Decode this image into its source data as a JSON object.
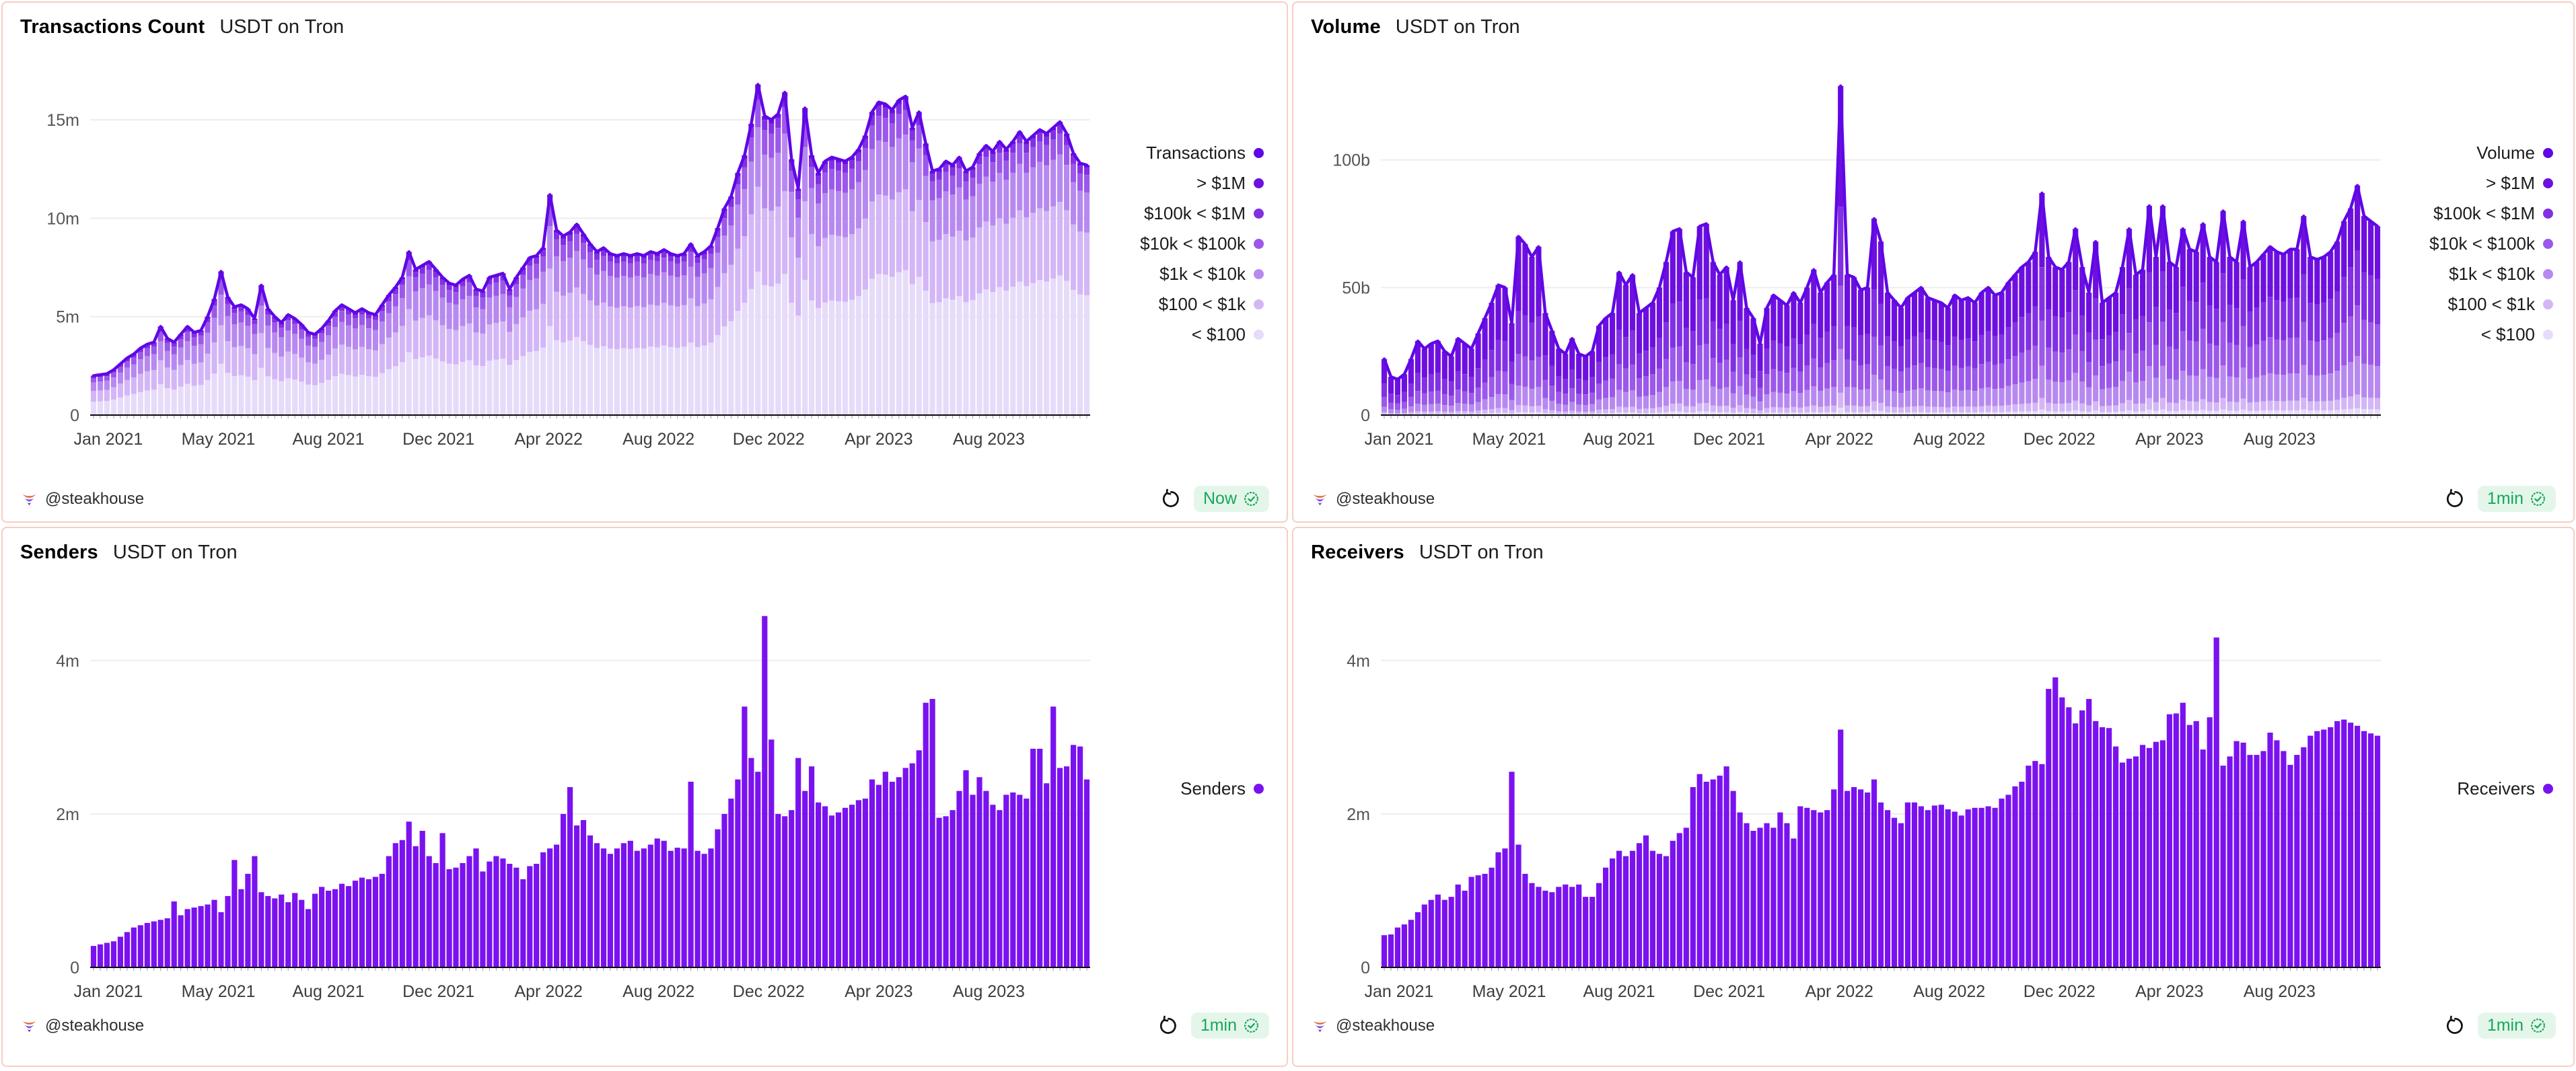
{
  "footer_common": {
    "author": "@steakhouse"
  },
  "colors": {
    "panel_border": "#f8cdc4",
    "badge_bg": "#e4f6ea",
    "badge_text": "#17a75c",
    "accent_line": "#6007e6",
    "solid_bar": "#7a12f0",
    "logo_orange": "#e4683e",
    "logo_purple": "#7e57e0",
    "logo_dark_purple": "#5b2ecc"
  },
  "panels": [
    {
      "title": "Transactions Count",
      "subtitle": "USDT on Tron",
      "freshness": "Now",
      "position": "top"
    },
    {
      "title": "Volume",
      "subtitle": "USDT on Tron",
      "freshness": "1min",
      "position": "top"
    },
    {
      "title": "Senders",
      "subtitle": "USDT on Tron",
      "freshness": "1min",
      "position": "bottom"
    },
    {
      "title": "Receivers",
      "subtitle": "USDT on Tron",
      "freshness": "1min",
      "position": "bottom"
    }
  ],
  "chart_data": [
    {
      "type": "bar",
      "variant": "stacked-bars-with-total-line",
      "title": "Transactions Count",
      "x_axis": {
        "labels": [
          "Jan 2021",
          "May 2021",
          "Aug 2021",
          "Dec 2021",
          "Apr 2022",
          "Aug 2022",
          "Dec 2022",
          "Apr 2023",
          "Aug 2023"
        ],
        "positions": [
          2.2,
          18.6,
          35.0,
          51.4,
          67.8,
          84.2,
          100.6,
          117.0,
          133.4
        ],
        "resolution": "weekly"
      },
      "y_axis": {
        "unit": "m",
        "ticks": [
          {
            "label": "0",
            "value": 0
          },
          {
            "label": "5m",
            "value": 5
          },
          {
            "label": "10m",
            "value": 10
          },
          {
            "label": "15m",
            "value": 15
          }
        ],
        "scale_max": 17.5
      },
      "legend": [
        {
          "label": "Transactions",
          "color": "#6007e6"
        },
        {
          "label": "> $1M",
          "color": "#6d10df"
        },
        {
          "label": "$100k < $1M",
          "color": "#8130e4"
        },
        {
          "label": "$10k < $100k",
          "color": "#9b58ea"
        },
        {
          "label": "$1k < $10k",
          "color": "#b789f0"
        },
        {
          "label": "$100 < $1k",
          "color": "#d3b6f6"
        },
        {
          "label": "< $100",
          "color": "#e7dbfa"
        }
      ],
      "line_color": "#6007e6",
      "stack": {
        "order_bottom_to_top": [
          "< $100",
          "$100 < $1k",
          "$1k < $10k",
          "$10k < $100k",
          "$100k < $1M",
          "> $1M"
        ],
        "colors_bottom_to_top": [
          "#e7dbfa",
          "#d3b6f6",
          "#b789f0",
          "#9b58ea",
          "#8130e4",
          "#6d10df"
        ],
        "fractions_start": [
          0.34,
          0.27,
          0.22,
          0.11,
          0.04,
          0.02
        ],
        "fractions_end": [
          0.48,
          0.25,
          0.16,
          0.07,
          0.03,
          0.01
        ]
      },
      "totals": [
        2.0,
        2.05,
        2.1,
        2.3,
        2.6,
        2.9,
        3.1,
        3.4,
        3.6,
        3.7,
        4.5,
        3.9,
        3.7,
        4.1,
        4.5,
        4.2,
        4.3,
        5.0,
        5.9,
        7.3,
        6.0,
        5.5,
        5.6,
        5.4,
        4.9,
        6.6,
        5.4,
        5.0,
        4.7,
        5.1,
        4.9,
        4.6,
        4.2,
        4.1,
        4.4,
        4.8,
        5.3,
        5.6,
        5.4,
        5.2,
        5.4,
        5.2,
        5.1,
        5.6,
        6.1,
        6.5,
        7.0,
        8.3,
        7.4,
        7.6,
        7.8,
        7.4,
        7.0,
        6.7,
        6.6,
        6.9,
        7.1,
        6.4,
        6.3,
        7.0,
        7.1,
        7.2,
        6.4,
        7.0,
        7.5,
        8.0,
        8.1,
        8.5,
        11.2,
        9.4,
        9.1,
        9.3,
        9.7,
        9.2,
        8.7,
        8.3,
        8.5,
        8.2,
        8.1,
        8.2,
        8.1,
        8.2,
        8.1,
        8.3,
        8.2,
        8.4,
        8.2,
        8.1,
        8.2,
        8.7,
        8.1,
        8.3,
        8.6,
        9.5,
        10.5,
        11.1,
        12.3,
        13.2,
        14.8,
        16.8,
        15.2,
        15.0,
        15.3,
        16.4,
        13.0,
        11.5,
        15.6,
        13.2,
        12.3,
        12.9,
        13.1,
        13.0,
        12.9,
        13.1,
        13.5,
        14.2,
        15.4,
        15.9,
        15.8,
        15.5,
        16.0,
        16.2,
        14.6,
        15.4,
        13.8,
        12.4,
        12.5,
        12.9,
        12.7,
        13.1,
        12.4,
        12.6,
        13.3,
        13.7,
        13.4,
        13.9,
        13.5,
        13.9,
        14.4,
        13.9,
        14.2,
        14.5,
        14.3,
        14.6,
        14.9,
        14.3,
        13.3,
        12.8,
        12.7
      ]
    },
    {
      "type": "bar",
      "variant": "stacked-bars-with-total-line",
      "title": "Volume",
      "x_axis": {
        "labels": [
          "Jan 2021",
          "May 2021",
          "Aug 2021",
          "Dec 2021",
          "Apr 2022",
          "Aug 2022",
          "Dec 2022",
          "Apr 2023",
          "Aug 2023"
        ],
        "positions": [
          2.2,
          18.6,
          35.0,
          51.4,
          67.8,
          84.2,
          100.6,
          117.0,
          133.4
        ],
        "resolution": "weekly"
      },
      "y_axis": {
        "unit": "b",
        "ticks": [
          {
            "label": "0",
            "value": 0
          },
          {
            "label": "50b",
            "value": 50
          },
          {
            "label": "100b",
            "value": 100
          }
        ],
        "scale_max": 135
      },
      "legend": [
        {
          "label": "Volume",
          "color": "#6007e6"
        },
        {
          "label": "> $1M",
          "color": "#6d10df"
        },
        {
          "label": "$100k < $1M",
          "color": "#8130e4"
        },
        {
          "label": "$10k < $100k",
          "color": "#9b58ea"
        },
        {
          "label": "$1k < $10k",
          "color": "#b789f0"
        },
        {
          "label": "$100 < $1k",
          "color": "#d3b6f6"
        },
        {
          "label": "< $100",
          "color": "#e7dbfa"
        }
      ],
      "line_color": "#6007e6",
      "stack": {
        "order_bottom_to_top": [
          "< $100",
          "$100 < $1k",
          "$1k < $10k",
          "$10k < $100k",
          "$100k < $1M",
          "> $1M"
        ],
        "colors_bottom_to_top": [
          "#e7dbfa",
          "#d3b6f6",
          "#b789f0",
          "#9b58ea",
          "#8130e4",
          "#6d10df"
        ],
        "fractions_start": [
          0.015,
          0.035,
          0.1,
          0.17,
          0.24,
          0.44
        ],
        "fractions_end": [
          0.03,
          0.06,
          0.17,
          0.22,
          0.24,
          0.28
        ]
      },
      "totals": [
        22,
        15,
        14,
        16,
        22,
        29,
        26,
        28,
        29,
        25,
        23,
        30,
        28,
        26,
        32,
        38,
        44,
        51,
        50,
        36,
        70,
        67,
        62,
        66,
        40,
        33,
        26,
        24,
        30,
        24,
        23,
        25,
        35,
        38,
        40,
        56,
        51,
        55,
        40,
        42,
        44,
        50,
        60,
        72,
        73,
        56,
        54,
        74,
        75,
        60,
        55,
        58,
        45,
        60,
        42,
        38,
        28,
        42,
        47,
        45,
        43,
        48,
        44,
        50,
        57,
        48,
        52,
        55,
        129,
        55,
        54,
        49,
        50,
        77,
        68,
        48,
        45,
        42,
        46,
        48,
        50,
        46,
        45,
        44,
        42,
        47,
        45,
        46,
        44,
        48,
        50,
        47,
        48,
        52,
        55,
        58,
        60,
        64,
        87,
        62,
        58,
        57,
        60,
        73,
        58,
        48,
        68,
        44,
        46,
        48,
        58,
        73,
        55,
        57,
        82,
        62,
        82,
        60,
        58,
        73,
        65,
        64,
        75,
        62,
        60,
        80,
        62,
        60,
        76,
        58,
        60,
        63,
        66,
        64,
        63,
        65,
        65,
        78,
        62,
        61,
        62,
        64,
        68,
        76,
        81,
        90,
        78,
        76,
        74
      ]
    },
    {
      "type": "bar",
      "variant": "solid-bars",
      "title": "Senders",
      "x_axis": {
        "labels": [
          "Jan 2021",
          "May 2021",
          "Aug 2021",
          "Dec 2021",
          "Apr 2022",
          "Aug 2022",
          "Dec 2022",
          "Apr 2023",
          "Aug 2023"
        ],
        "positions": [
          2.2,
          18.6,
          35.0,
          51.4,
          67.8,
          84.2,
          100.6,
          117.0,
          133.4
        ],
        "resolution": "weekly"
      },
      "y_axis": {
        "unit": "m",
        "ticks": [
          {
            "label": "0",
            "value": 0
          },
          {
            "label": "2m",
            "value": 2
          },
          {
            "label": "4m",
            "value": 4
          }
        ],
        "scale_max": 4.7
      },
      "legend": [
        {
          "label": "Senders",
          "color": "#7a12f0"
        }
      ],
      "bar_color": "#7a12f0",
      "totals": [
        0.28,
        0.3,
        0.32,
        0.34,
        0.4,
        0.46,
        0.52,
        0.55,
        0.58,
        0.6,
        0.62,
        0.64,
        0.86,
        0.68,
        0.76,
        0.78,
        0.8,
        0.82,
        0.88,
        0.72,
        0.93,
        1.4,
        1.02,
        1.22,
        1.45,
        0.98,
        0.93,
        0.9,
        0.95,
        0.85,
        0.97,
        0.88,
        0.76,
        0.96,
        1.05,
        1.0,
        1.02,
        1.09,
        1.06,
        1.13,
        1.17,
        1.15,
        1.18,
        1.22,
        1.45,
        1.62,
        1.66,
        1.9,
        1.58,
        1.78,
        1.45,
        1.36,
        1.75,
        1.28,
        1.3,
        1.36,
        1.45,
        1.55,
        1.25,
        1.38,
        1.45,
        1.42,
        1.35,
        1.3,
        1.15,
        1.32,
        1.35,
        1.5,
        1.55,
        1.6,
        2.0,
        2.35,
        1.85,
        1.92,
        1.72,
        1.62,
        1.55,
        1.48,
        1.55,
        1.62,
        1.65,
        1.52,
        1.55,
        1.6,
        1.68,
        1.65,
        1.52,
        1.56,
        1.55,
        2.42,
        1.52,
        1.48,
        1.55,
        1.8,
        2.0,
        2.2,
        2.45,
        3.4,
        2.73,
        2.55,
        4.58,
        2.97,
        2.0,
        1.97,
        2.05,
        2.73,
        2.3,
        2.62,
        2.15,
        2.1,
        1.98,
        2.02,
        2.08,
        2.12,
        2.18,
        2.2,
        2.45,
        2.38,
        2.55,
        2.42,
        2.48,
        2.6,
        2.66,
        2.83,
        3.45,
        3.5,
        1.95,
        1.97,
        2.05,
        2.3,
        2.57,
        2.25,
        2.48,
        2.3,
        2.12,
        2.05,
        2.25,
        2.28,
        2.25,
        2.2,
        2.85,
        2.85,
        2.4,
        3.4,
        2.6,
        2.62,
        2.9,
        2.88,
        2.45
      ]
    },
    {
      "type": "bar",
      "variant": "solid-bars",
      "title": "Receivers",
      "x_axis": {
        "labels": [
          "Jan 2021",
          "May 2021",
          "Aug 2021",
          "Dec 2021",
          "Apr 2022",
          "Aug 2022",
          "Dec 2022",
          "Apr 2023",
          "Aug 2023"
        ],
        "positions": [
          2.2,
          18.6,
          35.0,
          51.4,
          67.8,
          84.2,
          100.6,
          117.0,
          133.4
        ],
        "resolution": "weekly"
      },
      "y_axis": {
        "unit": "m",
        "ticks": [
          {
            "label": "0",
            "value": 0
          },
          {
            "label": "2m",
            "value": 2
          },
          {
            "label": "4m",
            "value": 4
          }
        ],
        "scale_max": 4.7
      },
      "legend": [
        {
          "label": "Receivers",
          "color": "#7a12f0"
        }
      ],
      "bar_color": "#7a12f0",
      "totals": [
        0.42,
        0.43,
        0.52,
        0.56,
        0.62,
        0.72,
        0.82,
        0.88,
        0.95,
        0.88,
        0.92,
        1.08,
        1.0,
        1.18,
        1.2,
        1.22,
        1.3,
        1.5,
        1.55,
        2.55,
        1.6,
        1.22,
        1.1,
        1.05,
        1.0,
        0.98,
        1.05,
        1.08,
        1.05,
        1.08,
        0.92,
        0.92,
        1.1,
        1.3,
        1.42,
        1.52,
        1.45,
        1.52,
        1.62,
        1.72,
        1.52,
        1.48,
        1.45,
        1.65,
        1.75,
        1.82,
        2.35,
        2.52,
        2.42,
        2.45,
        2.5,
        2.62,
        2.3,
        2.02,
        1.88,
        1.78,
        1.82,
        1.88,
        1.82,
        2.02,
        1.88,
        1.68,
        2.1,
        2.08,
        2.05,
        2.02,
        2.05,
        2.32,
        3.1,
        2.3,
        2.35,
        2.32,
        2.28,
        2.45,
        2.15,
        2.05,
        1.95,
        1.88,
        2.15,
        2.15,
        2.1,
        2.05,
        2.11,
        2.12,
        2.06,
        2.03,
        1.98,
        2.06,
        2.08,
        2.08,
        2.1,
        2.08,
        2.2,
        2.25,
        2.36,
        2.42,
        2.63,
        2.69,
        2.65,
        3.63,
        3.78,
        3.52,
        3.39,
        3.18,
        3.35,
        3.5,
        3.21,
        3.13,
        3.12,
        2.88,
        2.67,
        2.72,
        2.75,
        2.9,
        2.86,
        2.94,
        2.96,
        3.3,
        3.31,
        3.45,
        3.16,
        3.21,
        2.84,
        3.26,
        4.3,
        2.63,
        2.75,
        2.95,
        2.93,
        2.77,
        2.77,
        2.82,
        3.06,
        2.96,
        2.82,
        2.64,
        2.77,
        2.87,
        3.02,
        3.08,
        3.1,
        3.13,
        3.21,
        3.23,
        3.19,
        3.15,
        3.08,
        3.05,
        3.02
      ]
    }
  ]
}
